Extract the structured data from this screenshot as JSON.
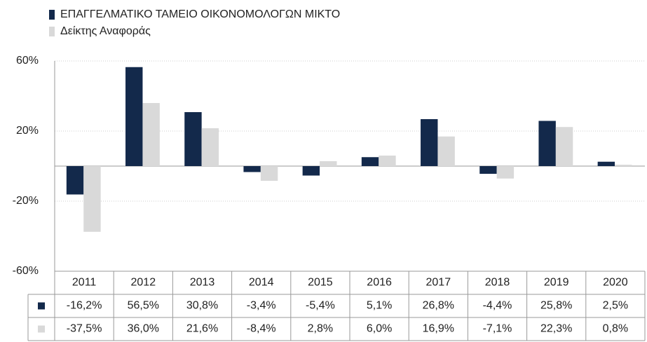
{
  "chart_data": {
    "type": "bar",
    "categories": [
      "2011",
      "2012",
      "2013",
      "2014",
      "2015",
      "2016",
      "2017",
      "2018",
      "2019",
      "2020"
    ],
    "series": [
      {
        "name": "ΕΠΑΓΓΕΛΜΑΤΙΚΟ ΤΑΜΕΙΟ ΟΙΚΟΝΟΜΟΛΟΓΩΝ ΜΙΚΤΟ",
        "color": "#13294b",
        "values": [
          -16.2,
          56.5,
          30.8,
          -3.4,
          -5.4,
          5.1,
          26.8,
          -4.4,
          25.8,
          2.5
        ],
        "value_labels": [
          "-16,2%",
          "56,5%",
          "30,8%",
          "-3,4%",
          "-5,4%",
          "5,1%",
          "26,8%",
          "-4,4%",
          "25,8%",
          "2,5%"
        ]
      },
      {
        "name": "Δείκτης Αναφοράς",
        "color": "#d9d9d9",
        "values": [
          -37.5,
          36.0,
          21.6,
          -8.4,
          2.8,
          6.0,
          16.9,
          -7.1,
          22.3,
          0.8
        ],
        "value_labels": [
          "-37,5%",
          "36,0%",
          "21,6%",
          "-8,4%",
          "2,8%",
          "6,0%",
          "16,9%",
          "-7,1%",
          "22,3%",
          "0,8%"
        ]
      }
    ],
    "ylim": [
      -60,
      60
    ],
    "yticks": [
      {
        "value": 60,
        "label": "60%"
      },
      {
        "value": 20,
        "label": "20%"
      },
      {
        "value": -20,
        "label": "-20%"
      },
      {
        "value": -60,
        "label": "-60%"
      }
    ],
    "grid": true,
    "legend": "top"
  }
}
